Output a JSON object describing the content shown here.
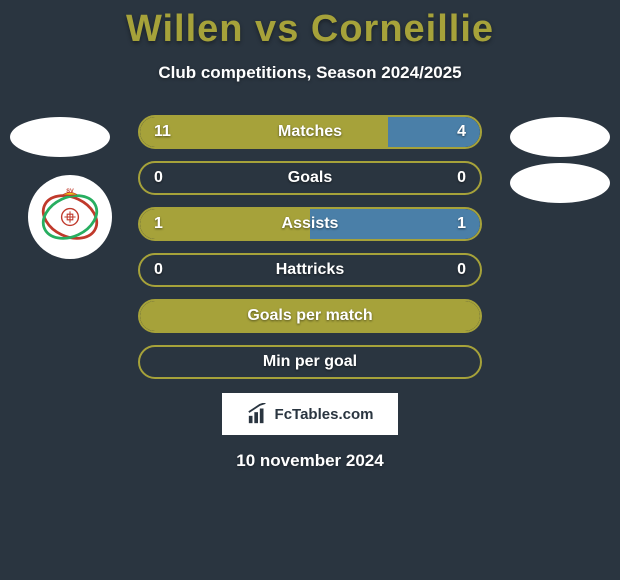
{
  "title_color": "#a6a23a",
  "title": "Willen vs Corneillie",
  "subtitle": "Club competitions, Season 2024/2025",
  "accent_left": "#a6a23a",
  "accent_right": "#4a7fa8",
  "border_color": "#a6a23a",
  "bars": [
    {
      "label": "Matches",
      "left_val": "11",
      "right_val": "4",
      "left_pct": 73,
      "right_pct": 27,
      "show_vals": true
    },
    {
      "label": "Goals",
      "left_val": "0",
      "right_val": "0",
      "left_pct": 0,
      "right_pct": 0,
      "show_vals": true
    },
    {
      "label": "Assists",
      "left_val": "1",
      "right_val": "1",
      "left_pct": 50,
      "right_pct": 50,
      "show_vals": true
    },
    {
      "label": "Hattricks",
      "left_val": "0",
      "right_val": "0",
      "left_pct": 0,
      "right_pct": 0,
      "show_vals": true
    },
    {
      "label": "Goals per match",
      "left_val": "",
      "right_val": "",
      "left_pct": 100,
      "right_pct": 0,
      "show_vals": false,
      "full_fill": true
    },
    {
      "label": "Min per goal",
      "left_val": "",
      "right_val": "",
      "left_pct": 0,
      "right_pct": 0,
      "show_vals": false
    }
  ],
  "brand": "FcTables.com",
  "date": "10 november 2024"
}
